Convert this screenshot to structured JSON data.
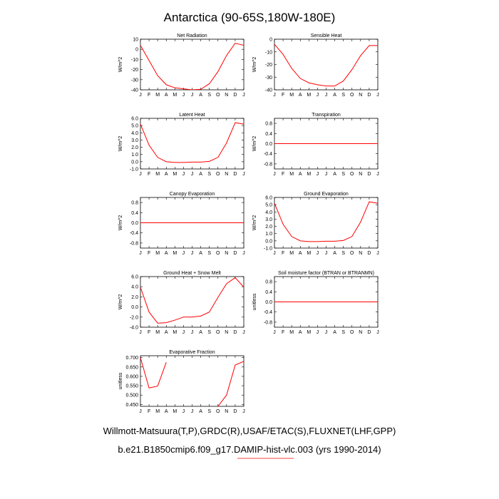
{
  "figure": {
    "title": "Antarctica (90-65S,180W-180E)",
    "footer_line1": "Willmott-Matsuura(T,P),GRDC(R),USAF/ETAC(S),FLUXNET(LHF,GPP)",
    "footer_line2": "b.e21.B1850cmip6.f09_g17.DAMIP-hist-vlc.003 (yrs 1990-2014)",
    "series_color": "#ff0000"
  },
  "chart_data": [
    {
      "type": "line",
      "title": "Net Radiation",
      "ylabel": "W/m^2",
      "x": [
        "J",
        "F",
        "M",
        "A",
        "M",
        "J",
        "J",
        "A",
        "S",
        "O",
        "N",
        "D",
        "J"
      ],
      "ylim": [
        -40,
        10
      ],
      "yticks": [
        "10",
        "0",
        "-10",
        "-20",
        "-30",
        "-40"
      ],
      "ytick_values": [
        10,
        0,
        -10,
        -20,
        -30,
        -40
      ],
      "values": [
        4,
        -11,
        -26,
        -35,
        -38,
        -39,
        -40,
        -39.5,
        -34,
        -22,
        -6,
        6,
        4
      ]
    },
    {
      "type": "line",
      "title": "Sensible Heat",
      "ylabel": "W/m^2",
      "x": [
        "J",
        "F",
        "M",
        "A",
        "M",
        "J",
        "J",
        "A",
        "S",
        "O",
        "N",
        "D",
        "J"
      ],
      "ylim": [
        -40,
        0
      ],
      "yticks": [
        "0",
        "-10",
        "-20",
        "-30",
        "-40"
      ],
      "ytick_values": [
        0,
        -10,
        -20,
        -30,
        -40
      ],
      "values": [
        -4,
        -12,
        -23,
        -31,
        -34.5,
        -36,
        -37,
        -37,
        -33,
        -24,
        -13,
        -5,
        -5
      ]
    },
    {
      "type": "line",
      "title": "Latent Heat",
      "ylabel": "W/m^2",
      "x": [
        "J",
        "F",
        "M",
        "A",
        "M",
        "J",
        "J",
        "A",
        "S",
        "O",
        "N",
        "D",
        "J"
      ],
      "ylim": [
        -1.0,
        6.0
      ],
      "yticks": [
        "6.0",
        "5.0",
        "4.0",
        "3.0",
        "2.0",
        "1.0",
        "0.0",
        "-1.0"
      ],
      "ytick_values": [
        6,
        5,
        4,
        3,
        2,
        1,
        0,
        -1
      ],
      "values": [
        5.2,
        2.3,
        0.6,
        0.0,
        -0.1,
        -0.1,
        -0.05,
        -0.05,
        0.05,
        0.6,
        2.6,
        5.4,
        5.2
      ]
    },
    {
      "type": "line",
      "title": "Transpiration",
      "ylabel": "W/m^2",
      "x": [
        "J",
        "F",
        "M",
        "A",
        "M",
        "J",
        "J",
        "A",
        "S",
        "O",
        "N",
        "D",
        "J"
      ],
      "ylim": [
        -1.0,
        1.0
      ],
      "yticks": [
        "0.8",
        "0.4",
        "0.0",
        "-0.4",
        "-0.8"
      ],
      "ytick_values": [
        0.8,
        0.4,
        0.0,
        -0.4,
        -0.8
      ],
      "values": [
        0,
        0,
        0,
        0,
        0,
        0,
        0,
        0,
        0,
        0,
        0,
        0,
        0
      ]
    },
    {
      "type": "line",
      "title": "Canopy Evaporation",
      "ylabel": "W/m^2",
      "x": [
        "J",
        "F",
        "M",
        "A",
        "M",
        "J",
        "J",
        "A",
        "S",
        "O",
        "N",
        "D",
        "J"
      ],
      "ylim": [
        -1.0,
        1.0
      ],
      "yticks": [
        "0.8",
        "0.4",
        "0.0",
        "-0.4",
        "-0.8"
      ],
      "ytick_values": [
        0.8,
        0.4,
        0.0,
        -0.4,
        -0.8
      ],
      "values": [
        0,
        0,
        0,
        0,
        0,
        0,
        0,
        0,
        0,
        0,
        0,
        0,
        0
      ]
    },
    {
      "type": "line",
      "title": "Ground Evaporation",
      "ylabel": "W/m^2",
      "x": [
        "J",
        "F",
        "M",
        "A",
        "M",
        "J",
        "J",
        "A",
        "S",
        "O",
        "N",
        "D",
        "J"
      ],
      "ylim": [
        -1.0,
        6.0
      ],
      "yticks": [
        "6.0",
        "5.0",
        "4.0",
        "3.0",
        "2.0",
        "1.0",
        "0.0",
        "-1.0"
      ],
      "ytick_values": [
        6,
        5,
        4,
        3,
        2,
        1,
        0,
        -1
      ],
      "values": [
        5.2,
        2.3,
        0.6,
        0.0,
        -0.1,
        -0.1,
        -0.05,
        -0.05,
        0.05,
        0.6,
        2.6,
        5.4,
        5.2
      ]
    },
    {
      "type": "line",
      "title": "Ground Heat + Snow Melt",
      "ylabel": "W/m^2",
      "x": [
        "J",
        "F",
        "M",
        "A",
        "M",
        "J",
        "J",
        "A",
        "S",
        "O",
        "N",
        "D",
        "J"
      ],
      "ylim": [
        -4.0,
        6.0
      ],
      "yticks": [
        "6.0",
        "4.0",
        "2.0",
        "0.0",
        "-2.0",
        "-4.0"
      ],
      "ytick_values": [
        6,
        4,
        2,
        0,
        -2,
        -4
      ],
      "values": [
        3.9,
        -1.0,
        -3.2,
        -3.1,
        -2.6,
        -2.0,
        -2.0,
        -1.8,
        -1.0,
        1.9,
        4.6,
        5.8,
        3.9
      ]
    },
    {
      "type": "line",
      "title": "Soil moisture factor (BTRAN or BTRANMN)",
      "ylabel": "unitless",
      "x": [
        "J",
        "F",
        "M",
        "A",
        "M",
        "J",
        "J",
        "A",
        "S",
        "O",
        "N",
        "D",
        "J"
      ],
      "ylim": [
        -1.0,
        1.0
      ],
      "yticks": [
        "0.8",
        "0.4",
        "0.0",
        "-0.4",
        "-0.8"
      ],
      "ytick_values": [
        0.8,
        0.4,
        0.0,
        -0.4,
        -0.8
      ],
      "values": [
        0,
        0,
        0,
        0,
        0,
        0,
        0,
        0,
        0,
        0,
        0,
        0,
        0
      ]
    },
    {
      "type": "line",
      "title": "Evaporative Fraction",
      "ylabel": "unitless",
      "x": [
        "J",
        "F",
        "M",
        "A",
        "M",
        "J",
        "J",
        "A",
        "S",
        "O",
        "N",
        "D",
        "J"
      ],
      "ylim": [
        0.44,
        0.71
      ],
      "yticks": [
        "0.700",
        "0.650",
        "0.600",
        "0.550",
        "0.500",
        "0.450"
      ],
      "ytick_values": [
        0.7,
        0.65,
        0.6,
        0.55,
        0.5,
        0.45
      ],
      "values": [
        0.7,
        0.538,
        0.548,
        0.675,
        null,
        null,
        null,
        null,
        null,
        0.44,
        0.5,
        0.66,
        0.68
      ]
    }
  ]
}
